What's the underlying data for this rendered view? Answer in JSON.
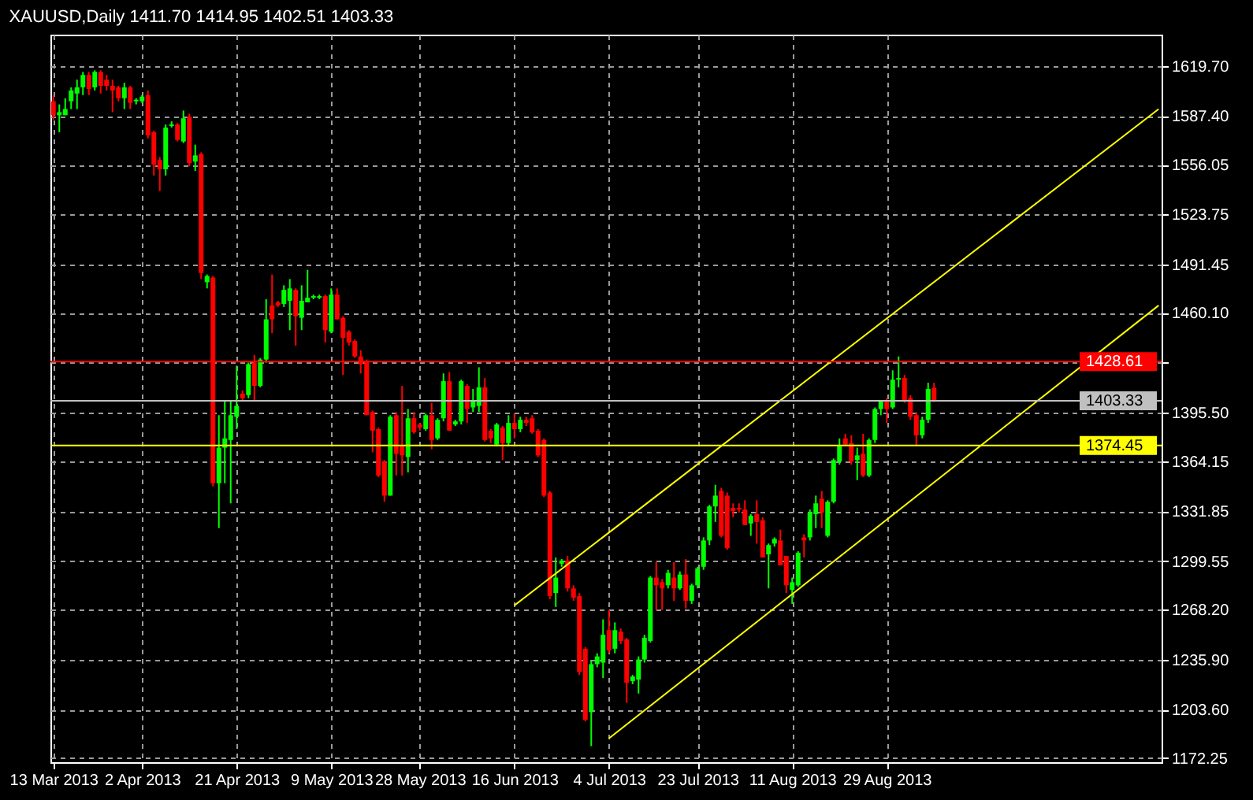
{
  "chart_data": {
    "type": "candlestick",
    "title": "XAUUSD,Daily 1411.70 1414.95 1402.51 1403.33",
    "categories": [
      "13 Mar 2013",
      null,
      null,
      null,
      null,
      null,
      null,
      null,
      null,
      null,
      null,
      null,
      null,
      null,
      null,
      "2 Apr 2013",
      null,
      null,
      null,
      null,
      null,
      null,
      null,
      null,
      null,
      null,
      null,
      null,
      null,
      null,
      null,
      "21 Apr 2013",
      null,
      null,
      null,
      null,
      null,
      null,
      null,
      null,
      null,
      null,
      null,
      null,
      null,
      null,
      null,
      "9 May 2013",
      null,
      null,
      null,
      null,
      null,
      null,
      null,
      null,
      null,
      null,
      null,
      null,
      null,
      null,
      "28 May 2013",
      null,
      null,
      null,
      null,
      null,
      null,
      null,
      null,
      null,
      null,
      null,
      null,
      null,
      null,
      null,
      "16 Jun 2013",
      null,
      null,
      null,
      null,
      null,
      null,
      null,
      null,
      null,
      null,
      null,
      null,
      null,
      null,
      null,
      "4 Jul 2013",
      null,
      null,
      null,
      null,
      null,
      null,
      null,
      null,
      null,
      null,
      null,
      null,
      null,
      null,
      "23 Jul 2013",
      null,
      null,
      null,
      null,
      null,
      null,
      null,
      null,
      null,
      null,
      null,
      null,
      null,
      null,
      null,
      "11 Aug 2013",
      null,
      null,
      null,
      null,
      null,
      null,
      null,
      null,
      null,
      null,
      null,
      null,
      null,
      null,
      null,
      "29 Aug 2013",
      null,
      null,
      null,
      null,
      null,
      null,
      null,
      null,
      null,
      null,
      null,
      null,
      null,
      null,
      null,
      null,
      null,
      null,
      null,
      null,
      null,
      null,
      null,
      null,
      null,
      null,
      null,
      null,
      null,
      null,
      null,
      null,
      null,
      null,
      null,
      null,
      null,
      null,
      null,
      null,
      null,
      null,
      null,
      null,
      null,
      null
    ],
    "ohlc": [
      [
        1597,
        1601,
        1585,
        1588
      ],
      [
        1588,
        1595,
        1577,
        1590
      ],
      [
        1588,
        1599,
        1588,
        1592
      ],
      [
        1597,
        1606,
        1592,
        1604
      ],
      [
        1602,
        1611,
        1592,
        1606
      ],
      [
        1606,
        1616,
        1601,
        1614
      ],
      [
        1614,
        1616,
        1601,
        1605
      ],
      [
        1606,
        1617,
        1604,
        1616
      ],
      [
        1616,
        1617,
        1602,
        1607
      ],
      [
        1611,
        1614,
        1604,
        1607
      ],
      [
        1607,
        1611,
        1590,
        1604
      ],
      [
        1606,
        1607,
        1597,
        1599
      ],
      [
        1599,
        1609,
        1592,
        1606
      ],
      [
        1606,
        1607,
        1592,
        1596
      ],
      [
        1597,
        1599,
        1595,
        1598
      ],
      [
        1597,
        1601,
        1596,
        1600
      ],
      [
        1601,
        1604,
        1573,
        1575
      ],
      [
        1577,
        1578,
        1549,
        1556
      ],
      [
        1559,
        1561,
        1539,
        1553
      ],
      [
        1553,
        1582,
        1549,
        1580
      ],
      [
        1581,
        1584,
        1580,
        1582
      ],
      [
        1582,
        1583,
        1571,
        1572
      ],
      [
        1571,
        1591,
        1570,
        1586
      ],
      [
        1587,
        1589,
        1555,
        1557
      ],
      [
        1558,
        1569,
        1552,
        1562
      ],
      [
        1563,
        1564,
        1482,
        1486
      ],
      [
        1480,
        1485,
        1476,
        1484
      ],
      [
        1483,
        1484,
        1348,
        1350
      ],
      [
        1350,
        1394,
        1321,
        1373
      ],
      [
        1373,
        1403,
        1350,
        1379
      ],
      [
        1378,
        1403,
        1337,
        1394
      ],
      [
        1393,
        1426,
        1385,
        1400
      ],
      [
        1408,
        1410,
        1403,
        1405
      ],
      [
        1407,
        1428,
        1405,
        1427
      ],
      [
        1428,
        1433,
        1403,
        1413
      ],
      [
        1413,
        1431,
        1412,
        1430
      ],
      [
        1430,
        1469,
        1428,
        1456
      ],
      [
        1465,
        1485,
        1447,
        1456
      ],
      [
        1467,
        1468,
        1464,
        1465
      ],
      [
        1466,
        1478,
        1464,
        1475
      ],
      [
        1468,
        1482,
        1449,
        1476
      ],
      [
        1475,
        1476,
        1439,
        1458
      ],
      [
        1457,
        1478,
        1449,
        1468
      ],
      [
        1467,
        1488,
        1467,
        1470
      ],
      [
        1470,
        1472,
        1469,
        1471
      ],
      [
        1470,
        1472,
        1469,
        1471
      ],
      [
        1471,
        1472,
        1441,
        1449
      ],
      [
        1448,
        1476,
        1447,
        1472
      ],
      [
        1472,
        1476,
        1456,
        1456
      ],
      [
        1457,
        1458,
        1420,
        1444
      ],
      [
        1448,
        1449,
        1439,
        1441
      ],
      [
        1442,
        1443,
        1431,
        1432
      ],
      [
        1432,
        1436,
        1421,
        1427
      ],
      [
        1429,
        1430,
        1394,
        1394
      ],
      [
        1396,
        1397,
        1370,
        1384
      ],
      [
        1385,
        1386,
        1354,
        1355
      ],
      [
        1364,
        1365,
        1338,
        1342
      ],
      [
        1342,
        1394,
        1342,
        1393
      ],
      [
        1394,
        1396,
        1355,
        1369
      ],
      [
        1374,
        1413,
        1355,
        1368
      ],
      [
        1367,
        1398,
        1357,
        1392
      ],
      [
        1392,
        1396,
        1382,
        1383
      ],
      [
        1388,
        1389,
        1384,
        1386
      ],
      [
        1385,
        1395,
        1384,
        1394
      ],
      [
        1394,
        1402,
        1372,
        1378
      ],
      [
        1379,
        1392,
        1378,
        1391
      ],
      [
        1392,
        1421,
        1390,
        1416
      ],
      [
        1416,
        1422,
        1384,
        1384
      ],
      [
        1388,
        1391,
        1387,
        1390
      ],
      [
        1390,
        1417,
        1388,
        1416
      ],
      [
        1413,
        1414,
        1389,
        1398
      ],
      [
        1399,
        1411,
        1396,
        1403
      ],
      [
        1400,
        1425,
        1396,
        1412
      ],
      [
        1412,
        1418,
        1377,
        1378
      ],
      [
        1384,
        1385,
        1376,
        1379
      ],
      [
        1375,
        1389,
        1374,
        1388
      ],
      [
        1386,
        1387,
        1365,
        1376
      ],
      [
        1376,
        1394,
        1374,
        1389
      ],
      [
        1389,
        1395,
        1379,
        1385
      ],
      [
        1385,
        1393,
        1383,
        1391
      ],
      [
        1391,
        1393,
        1387,
        1389
      ],
      [
        1392,
        1394,
        1382,
        1383
      ],
      [
        1384,
        1385,
        1367,
        1368
      ],
      [
        1378,
        1379,
        1341,
        1342
      ],
      [
        1344,
        1345,
        1275,
        1277
      ],
      [
        1279,
        1302,
        1270,
        1289
      ],
      [
        1298,
        1301,
        1296,
        1300
      ],
      [
        1300,
        1303,
        1280,
        1282
      ],
      [
        1282,
        1284,
        1274,
        1276
      ],
      [
        1277,
        1279,
        1226,
        1228
      ],
      [
        1243,
        1244,
        1196,
        1197
      ],
      [
        1202,
        1235,
        1180,
        1233
      ],
      [
        1233,
        1240,
        1231,
        1238
      ],
      [
        1234,
        1262,
        1224,
        1252
      ],
      [
        1255,
        1268,
        1240,
        1242
      ],
      [
        1243,
        1260,
        1240,
        1255
      ],
      [
        1254,
        1256,
        1246,
        1248
      ],
      [
        1249,
        1250,
        1208,
        1221
      ],
      [
        1222,
        1226,
        1220,
        1225
      ],
      [
        1223,
        1238,
        1214,
        1236
      ],
      [
        1236,
        1252,
        1234,
        1250
      ],
      [
        1248,
        1290,
        1247,
        1289
      ],
      [
        1289,
        1299,
        1268,
        1284
      ],
      [
        1286,
        1288,
        1268,
        1282
      ],
      [
        1284,
        1294,
        1282,
        1292
      ],
      [
        1289,
        1299,
        1274,
        1282
      ],
      [
        1282,
        1293,
        1281,
        1291
      ],
      [
        1291,
        1301,
        1269,
        1274
      ],
      [
        1274,
        1285,
        1272,
        1284
      ],
      [
        1284,
        1296,
        1282,
        1295
      ],
      [
        1296,
        1315,
        1294,
        1313
      ],
      [
        1313,
        1336,
        1310,
        1335
      ],
      [
        1335,
        1349,
        1325,
        1342
      ],
      [
        1345,
        1347,
        1315,
        1316
      ],
      [
        1342,
        1344,
        1307,
        1308
      ],
      [
        1334,
        1337,
        1328,
        1332
      ],
      [
        1334,
        1337,
        1331,
        1333
      ],
      [
        1333,
        1339,
        1323,
        1323
      ],
      [
        1324,
        1330,
        1316,
        1329
      ],
      [
        1330,
        1339,
        1311,
        1325
      ],
      [
        1326,
        1328,
        1302,
        1302
      ],
      [
        1304,
        1311,
        1282,
        1310
      ],
      [
        1311,
        1315,
        1309,
        1314
      ],
      [
        1313,
        1320,
        1297,
        1297
      ],
      [
        1303,
        1303,
        1279,
        1284
      ],
      [
        1281,
        1289,
        1272,
        1286
      ],
      [
        1284,
        1306,
        1283,
        1305
      ],
      [
        1315,
        1317,
        1302,
        1313
      ],
      [
        1315,
        1333,
        1313,
        1331
      ],
      [
        1330,
        1342,
        1321,
        1337
      ],
      [
        1340,
        1345,
        1321,
        1331
      ],
      [
        1316,
        1339,
        1315,
        1338
      ],
      [
        1338,
        1366,
        1337,
        1365
      ],
      [
        1364,
        1379,
        1362,
        1374
      ],
      [
        1379,
        1382,
        1374,
        1375
      ],
      [
        1376,
        1381,
        1362,
        1364
      ],
      [
        1365,
        1373,
        1352,
        1368
      ],
      [
        1369,
        1382,
        1354,
        1355
      ],
      [
        1355,
        1379,
        1354,
        1378
      ],
      [
        1378,
        1399,
        1376,
        1398
      ],
      [
        1398,
        1403,
        1394,
        1403
      ],
      [
        1403,
        1405,
        1389,
        1398
      ],
      [
        1399,
        1423,
        1398,
        1417
      ],
      [
        1417,
        1432,
        1412,
        1418
      ],
      [
        1418,
        1420,
        1402,
        1403
      ],
      [
        1405,
        1407,
        1391,
        1393
      ],
      [
        1394,
        1396,
        1374,
        1381
      ],
      [
        1381,
        1393,
        1379,
        1391
      ],
      [
        1391,
        1415,
        1389,
        1411
      ],
      [
        1411.7,
        1414.95,
        1402.51,
        1403.33
      ],
      null,
      null,
      null,
      null,
      null,
      null,
      null,
      null,
      null,
      null,
      null,
      null,
      null,
      null,
      null,
      null,
      null,
      null,
      null,
      null,
      null,
      null,
      null,
      null,
      null,
      null,
      null,
      null,
      null,
      null,
      null,
      null,
      null,
      null,
      null,
      null,
      null,
      null
    ],
    "colors": [
      "#ff0000",
      "#00ff00",
      "#00ff00",
      "#00ff00",
      "#00ff00",
      "#00ff00",
      "#ff0000",
      "#00ff00",
      "#ff0000",
      "#ff0000",
      "#ff0000",
      "#ff0000",
      "#00ff00",
      "#ff0000",
      "#00ff00",
      "#00ff00",
      "#ff0000",
      "#ff0000",
      "#ff0000",
      "#00ff00",
      "#00ff00",
      "#ff0000",
      "#00ff00",
      "#ff0000",
      "#00ff00",
      "#ff0000",
      "#00ff00",
      "#ff0000",
      "#00ff00",
      "#00ff00",
      "#00ff00",
      "#00ff00",
      "#ff0000",
      "#00ff00",
      "#ff0000",
      "#00ff00",
      "#00ff00",
      "#ff0000",
      "#ff0000",
      "#00ff00",
      "#00ff00",
      "#ff0000",
      "#00ff00",
      "#00ff00",
      "#00ff00",
      "#00ff00",
      "#ff0000",
      "#00ff00",
      "#ff0000",
      "#ff0000",
      "#ff0000",
      "#ff0000",
      "#ff0000",
      "#ff0000",
      "#ff0000",
      "#ff0000",
      "#ff0000",
      "#00ff00",
      "#ff0000",
      "#ff0000",
      "#00ff00",
      "#ff0000",
      "#ff0000",
      "#00ff00",
      "#ff0000",
      "#00ff00",
      "#00ff00",
      "#ff0000",
      "#00ff00",
      "#00ff00",
      "#ff0000",
      "#00ff00",
      "#00ff00",
      "#ff0000",
      "#ff0000",
      "#00ff00",
      "#ff0000",
      "#00ff00",
      "#ff0000",
      "#00ff00",
      "#ff0000",
      "#ff0000",
      "#ff0000",
      "#ff0000",
      "#ff0000",
      "#00ff00",
      "#00ff00",
      "#ff0000",
      "#ff0000",
      "#ff0000",
      "#ff0000",
      "#00ff00",
      "#00ff00",
      "#00ff00",
      "#ff0000",
      "#00ff00",
      "#ff0000",
      "#ff0000",
      "#00ff00",
      "#00ff00",
      "#00ff00",
      "#00ff00",
      "#ff0000",
      "#ff0000",
      "#00ff00",
      "#ff0000",
      "#00ff00",
      "#ff0000",
      "#00ff00",
      "#00ff00",
      "#00ff00",
      "#00ff00",
      "#00ff00",
      "#ff0000",
      "#ff0000",
      "#ff0000",
      "#ff0000",
      "#ff0000",
      "#00ff00",
      "#ff0000",
      "#ff0000",
      "#00ff00",
      "#00ff00",
      "#ff0000",
      "#ff0000",
      "#00ff00",
      "#00ff00",
      "#ff0000",
      "#00ff00",
      "#00ff00",
      "#ff0000",
      "#00ff00",
      "#00ff00",
      "#00ff00",
      "#ff0000",
      "#ff0000",
      "#00ff00",
      "#ff0000",
      "#00ff00",
      "#00ff00",
      "#00ff00",
      "#ff0000",
      "#00ff00",
      "#00ff00",
      "#ff0000",
      "#ff0000",
      "#ff0000",
      "#00ff00",
      "#00ff00",
      "#ff0000",
      null,
      null,
      null,
      null,
      null,
      null,
      null,
      null,
      null,
      null,
      null,
      null,
      null,
      null,
      null,
      null,
      null,
      null,
      null,
      null,
      null,
      null,
      null,
      null,
      null,
      null,
      null,
      null,
      null,
      null,
      null,
      null,
      null,
      null,
      null,
      null,
      null,
      null
    ],
    "ylim": [
      1169.6,
      1640.1
    ],
    "yticks": [
      {
        "value": 1619.7,
        "label": "1619.70"
      },
      {
        "value": 1587.4,
        "label": "1587.40"
      },
      {
        "value": 1556.05,
        "label": "1556.05"
      },
      {
        "value": 1523.75,
        "label": "1523.75"
      },
      {
        "value": 1491.45,
        "label": "1491.45"
      },
      {
        "value": 1460.1,
        "label": "1460.10"
      },
      {
        "value": 1427.8,
        "label": null
      },
      {
        "value": 1395.5,
        "label": "1395.50"
      },
      {
        "value": 1364.15,
        "label": "1364.15"
      },
      {
        "value": 1331.85,
        "label": "1331.85"
      },
      {
        "value": 1299.55,
        "label": "1299.55"
      },
      {
        "value": 1268.2,
        "label": "1268.20"
      },
      {
        "value": 1235.9,
        "label": "1235.90"
      },
      {
        "value": 1203.6,
        "label": "1203.60"
      },
      {
        "value": 1172.25,
        "label": "1172.25"
      }
    ],
    "grid": true,
    "ref_lines": [
      {
        "axis": "y",
        "value": 1428.61,
        "label": "1428.61",
        "color": "#ff0000",
        "line_style": "solid"
      },
      {
        "axis": "y",
        "value": 1403.33,
        "label": "1403.33",
        "color": "#c0c0c0",
        "line_style": "solid"
      },
      {
        "axis": "y",
        "value": 1374.45,
        "label": "1374.45",
        "color": "#ffff00",
        "line_style": "solid"
      }
    ],
    "series": [
      {
        "type": "line",
        "color": "#ffff00",
        "values": [
          null,
          null,
          null,
          null,
          null,
          null,
          null,
          null,
          null,
          null,
          null,
          null,
          null,
          null,
          null,
          null,
          null,
          null,
          null,
          null,
          null,
          null,
          null,
          null,
          null,
          null,
          null,
          null,
          null,
          null,
          null,
          null,
          null,
          null,
          null,
          null,
          null,
          null,
          null,
          null,
          null,
          null,
          null,
          null,
          null,
          null,
          null,
          null,
          null,
          null,
          null,
          null,
          null,
          null,
          null,
          null,
          null,
          null,
          null,
          null,
          null,
          null,
          null,
          null,
          null,
          null,
          null,
          null,
          null,
          null,
          null,
          null,
          null,
          null,
          null,
          null,
          null,
          null,
          1271,
          null,
          null,
          null,
          null,
          null,
          null,
          null,
          null,
          null,
          null,
          null,
          null,
          null,
          null,
          null,
          null,
          null,
          null,
          null,
          null,
          null,
          null,
          null,
          null,
          null,
          null,
          null,
          null,
          null,
          null,
          null,
          null,
          null,
          null,
          null,
          null,
          null,
          null,
          null,
          null,
          null,
          null,
          null,
          null,
          null,
          null,
          null,
          null,
          null,
          null,
          null,
          null,
          null,
          null,
          null,
          null,
          null,
          null,
          null,
          null,
          null,
          null,
          null,
          null,
          null,
          null,
          null,
          null,
          null,
          null,
          null,
          null,
          null,
          null,
          null,
          null,
          null,
          null,
          null,
          null,
          null,
          null,
          null,
          null,
          null,
          null,
          null,
          null,
          null,
          null,
          null,
          null,
          null,
          null,
          null,
          null,
          null,
          null,
          null,
          null,
          null,
          null,
          null,
          null,
          null,
          null,
          null,
          null,
          1592
        ]
      },
      {
        "type": "line",
        "color": "#ffff00",
        "values": [
          null,
          null,
          null,
          null,
          null,
          null,
          null,
          null,
          null,
          null,
          null,
          null,
          null,
          null,
          null,
          null,
          null,
          null,
          null,
          null,
          null,
          null,
          null,
          null,
          null,
          null,
          null,
          null,
          null,
          null,
          null,
          null,
          null,
          null,
          null,
          null,
          null,
          null,
          null,
          null,
          null,
          null,
          null,
          null,
          null,
          null,
          null,
          null,
          null,
          null,
          null,
          null,
          null,
          null,
          null,
          null,
          null,
          null,
          null,
          null,
          null,
          null,
          null,
          null,
          null,
          null,
          null,
          null,
          null,
          null,
          null,
          null,
          null,
          null,
          null,
          null,
          null,
          null,
          null,
          null,
          null,
          null,
          null,
          null,
          null,
          null,
          null,
          null,
          null,
          null,
          null,
          null,
          null,
          null,
          1185,
          null,
          null,
          null,
          null,
          null,
          null,
          null,
          null,
          null,
          null,
          null,
          null,
          null,
          null,
          null,
          null,
          null,
          null,
          null,
          null,
          null,
          null,
          null,
          null,
          null,
          null,
          null,
          null,
          null,
          null,
          null,
          null,
          null,
          null,
          null,
          null,
          null,
          null,
          null,
          null,
          null,
          null,
          null,
          null,
          null,
          null,
          null,
          null,
          null,
          null,
          null,
          null,
          null,
          null,
          null,
          null,
          null,
          null,
          null,
          null,
          null,
          null,
          null,
          null,
          null,
          null,
          null,
          null,
          null,
          null,
          null,
          null,
          null,
          null,
          null,
          null,
          null,
          null,
          null,
          null,
          null,
          null,
          null,
          null,
          null,
          null,
          null,
          null,
          null,
          null,
          null,
          null,
          1465
        ]
      }
    ]
  }
}
